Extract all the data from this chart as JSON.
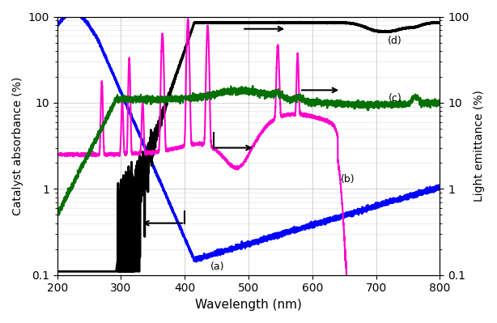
{
  "xlim": [
    200,
    800
  ],
  "ylim_left": [
    0.1,
    100
  ],
  "ylim_right": [
    0.1,
    100
  ],
  "xlabel": "Wavelength (nm)",
  "ylabel_left": "Catalyst absorbance (%)",
  "ylabel_right": "Light emittance (%)",
  "colors": {
    "a": "#0000FF",
    "b": "#FF00CC",
    "c": "#007000",
    "d": "#000000"
  }
}
